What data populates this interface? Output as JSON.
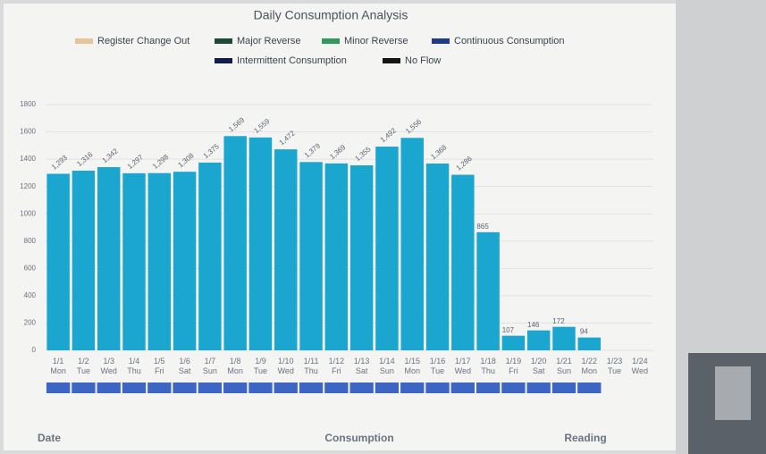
{
  "chart_data": {
    "type": "bar",
    "title": "Daily Consumption Analysis",
    "legend": [
      {
        "name": "Register Change Out",
        "color": "#e6c39b"
      },
      {
        "name": "Major Reverse",
        "color": "#1c4a38"
      },
      {
        "name": "Minor Reverse",
        "color": "#2f9a5c"
      },
      {
        "name": "Continuous Consumption",
        "color": "#1f3c8c"
      },
      {
        "name": "Intermittent Consumption",
        "color": "#101c4e"
      },
      {
        "name": "No Flow",
        "color": "#141414"
      }
    ],
    "categories": [
      "1/1 Mon",
      "1/2 Tue",
      "1/3 Wed",
      "1/4 Thu",
      "1/5 Fri",
      "1/6 Sat",
      "1/7 Sun",
      "1/8 Mon",
      "1/9 Tue",
      "1/10 Wed",
      "1/11 Thu",
      "1/12 Fri",
      "1/13 Sat",
      "1/14 Sun",
      "1/15 Mon",
      "1/16 Tue",
      "1/17 Wed",
      "1/18 Thu",
      "1/19 Fri",
      "1/20 Sat",
      "1/21 Sun",
      "1/22 Mon",
      "1/23 Tue",
      "1/24 Wed"
    ],
    "values": [
      1293,
      1316,
      1342,
      1297,
      1298,
      1308,
      1375,
      1569,
      1559,
      1472,
      1379,
      1369,
      1355,
      1492,
      1556,
      1368,
      1286,
      865,
      107,
      146,
      172,
      94,
      null,
      null
    ],
    "value_labels": [
      "1,293",
      "1,316",
      "1,342",
      "1,297",
      "1,298",
      "1,308",
      "1,375",
      "1,569",
      "1,559",
      "1,472",
      "1,379",
      "1,369",
      "1,355",
      "1,492",
      "1,556",
      "1,368",
      "1,286",
      "865",
      "107",
      "146",
      "172",
      "94",
      null,
      null
    ],
    "color": "#1aa6cf",
    "ylim": [
      0,
      1800
    ],
    "yticks": [
      0,
      200,
      400,
      600,
      800,
      1000,
      1200,
      1400,
      1600,
      1800
    ],
    "grid": true
  },
  "table_header": [
    "Date",
    "Consumption",
    "Reading"
  ]
}
